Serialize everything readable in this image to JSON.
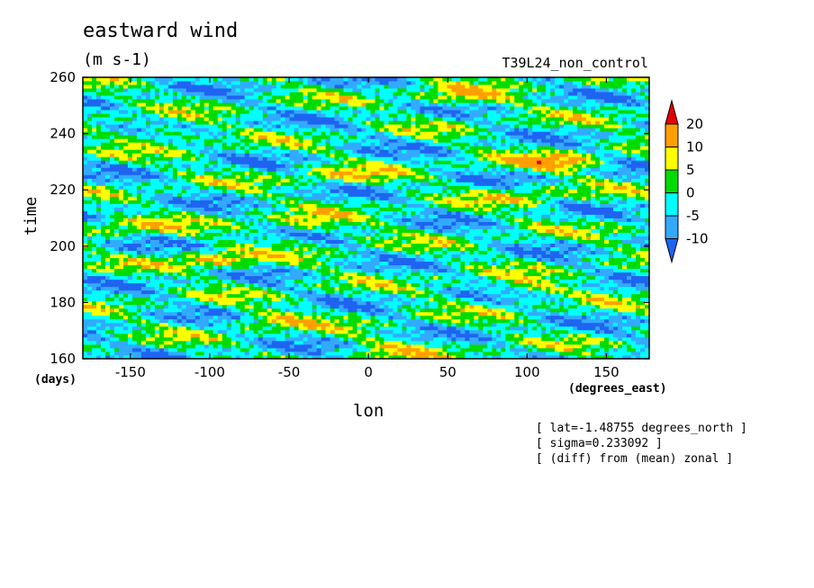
{
  "chart_data": {
    "type": "heatmap",
    "title": "eastward wind",
    "units": "(m s-1)",
    "run_name": "T39L24_non_control",
    "xlabel": "lon",
    "x_units": "(degrees_east)",
    "ylabel": "time",
    "y_units": "(days)",
    "xlim": [
      -180,
      177
    ],
    "ylim": [
      160,
      260
    ],
    "x_ticks": [
      -150,
      -100,
      -50,
      0,
      50,
      100,
      150
    ],
    "y_ticks": [
      160,
      180,
      200,
      220,
      240,
      260
    ],
    "colorbar": {
      "levels": [
        -10,
        -5,
        0,
        5,
        10,
        20
      ],
      "labels": [
        "20",
        "10",
        "5",
        "0",
        "-5",
        "-10"
      ],
      "colors": [
        "#1e64f0",
        "#32aaff",
        "#00ffff",
        "#00dc00",
        "#ffff00",
        "#ffa000",
        "#e60000"
      ],
      "extend": "both"
    },
    "notes": [
      "[ lat=-1.48755 degrees_north ]",
      "[ sigma=0.233092 ]",
      "[ (diff) from (mean) zonal ]"
    ]
  }
}
